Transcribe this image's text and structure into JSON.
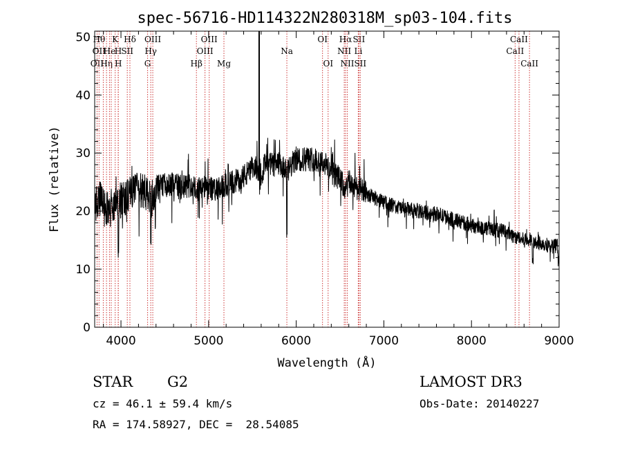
{
  "chart_data": {
    "type": "line",
    "title": "spec-56716-HD114322N280318M_sp03-104.fits",
    "xlabel": "Wavelength (Å)",
    "ylabel": "Flux (relative)",
    "xlim": [
      3700,
      9000
    ],
    "ylim": [
      0,
      51
    ],
    "xticks": [
      4000,
      5000,
      6000,
      7000,
      8000,
      9000
    ],
    "yticks": [
      0,
      10,
      20,
      30,
      40,
      50
    ],
    "series": [
      {
        "name": "spectrum",
        "anchors_x": [
          3700,
          3760,
          3800,
          3850,
          3900,
          3950,
          4000,
          4050,
          4100,
          4200,
          4300,
          4350,
          4400,
          4500,
          4600,
          4700,
          4800,
          4850,
          4900,
          5000,
          5100,
          5200,
          5300,
          5400,
          5500,
          5550,
          5600,
          5650,
          5700,
          5800,
          5850,
          5890,
          5950,
          6000,
          6100,
          6200,
          6300,
          6400,
          6500,
          6563,
          6600,
          6700,
          6800,
          7000,
          7200,
          7400,
          7600,
          7800,
          8000,
          8200,
          8400,
          8500,
          8600,
          8700,
          8800,
          8900,
          9000
        ],
        "anchors_y": [
          21,
          22,
          21.5,
          20,
          20.5,
          21,
          22,
          22.5,
          23,
          23.5,
          23,
          22,
          24,
          24.5,
          24.5,
          24,
          24.5,
          23.5,
          24,
          24,
          23.5,
          24.5,
          25,
          26,
          27,
          27.5,
          27,
          28,
          28,
          28,
          27.5,
          26.5,
          28,
          29,
          29,
          29,
          28.5,
          27,
          25.5,
          23.5,
          25,
          24,
          23,
          21.5,
          20.5,
          20,
          19.5,
          18.5,
          17.5,
          17,
          16.5,
          15.5,
          15,
          15,
          14.5,
          14,
          14
        ]
      }
    ],
    "spike": {
      "x": 5577,
      "y_top": 51
    },
    "lines": [
      {
        "x": 3727,
        "labels": [
          {
            "row": 2,
            "text": "OII"
          }
        ]
      },
      {
        "x": 3750,
        "labels": [
          {
            "row": 0,
            "text": "Hθ"
          },
          {
            "row": 1,
            "text": "OII"
          }
        ]
      },
      {
        "x": 3798,
        "labels": []
      },
      {
        "x": 3835,
        "labels": [
          {
            "row": 2,
            "text": "Hη"
          }
        ]
      },
      {
        "x": 3869,
        "labels": [
          {
            "row": 1,
            "text": "He"
          }
        ]
      },
      {
        "x": 3889,
        "labels": []
      },
      {
        "x": 3934,
        "labels": [
          {
            "row": 0,
            "text": "K"
          }
        ]
      },
      {
        "x": 3968,
        "labels": [
          {
            "row": 1,
            "text": "H"
          }
        ]
      },
      {
        "x": 3970,
        "labels": [
          {
            "row": 2,
            "text": "H"
          }
        ]
      },
      {
        "x": 4072,
        "labels": [
          {
            "row": 1,
            "text": "SII"
          }
        ]
      },
      {
        "x": 4102,
        "labels": [
          {
            "row": 0,
            "text": "Hδ"
          }
        ]
      },
      {
        "x": 4304,
        "labels": [
          {
            "row": 2,
            "text": "G"
          }
        ]
      },
      {
        "x": 4340,
        "labels": [
          {
            "row": 1,
            "text": "Hγ"
          }
        ]
      },
      {
        "x": 4363,
        "labels": [
          {
            "row": 0,
            "text": "OIII"
          }
        ]
      },
      {
        "x": 4861,
        "labels": [
          {
            "row": 2,
            "text": "Hβ"
          }
        ]
      },
      {
        "x": 4959,
        "labels": [
          {
            "row": 1,
            "text": "OIII"
          }
        ]
      },
      {
        "x": 5007,
        "labels": [
          {
            "row": 0,
            "text": "OIII"
          }
        ]
      },
      {
        "x": 5175,
        "labels": [
          {
            "row": 2,
            "text": "Mg"
          }
        ]
      },
      {
        "x": 5893,
        "labels": [
          {
            "row": 1,
            "text": "Na"
          }
        ]
      },
      {
        "x": 6300,
        "labels": [
          {
            "row": 0,
            "text": "OI"
          }
        ]
      },
      {
        "x": 6364,
        "labels": [
          {
            "row": 2,
            "text": "OI"
          }
        ]
      },
      {
        "x": 6548,
        "labels": [
          {
            "row": 1,
            "text": "NII"
          }
        ]
      },
      {
        "x": 6563,
        "labels": [
          {
            "row": 0,
            "text": "Hα"
          }
        ]
      },
      {
        "x": 6583,
        "labels": [
          {
            "row": 2,
            "text": "NII"
          }
        ]
      },
      {
        "x": 6708,
        "labels": [
          {
            "row": 1,
            "text": "Li"
          }
        ]
      },
      {
        "x": 6716,
        "labels": [
          {
            "row": 0,
            "text": "SII"
          }
        ]
      },
      {
        "x": 6731,
        "labels": [
          {
            "row": 2,
            "text": "SII"
          }
        ]
      },
      {
        "x": 8498,
        "labels": [
          {
            "row": 1,
            "text": "CaII"
          }
        ]
      },
      {
        "x": 8542,
        "labels": [
          {
            "row": 0,
            "text": "CaII"
          }
        ]
      },
      {
        "x": 8662,
        "labels": [
          {
            "row": 2,
            "text": "CaII"
          }
        ]
      }
    ],
    "grid": false,
    "legend": "none"
  },
  "info": {
    "class": "STAR",
    "subclass": "G2",
    "survey": "LAMOST DR3",
    "cz": "cz = 46.1 ± 59.4 km/s",
    "obsdate": "Obs-Date: 20140227",
    "radec": "RA = 174.58927, DEC =  28.54085"
  },
  "colors": {
    "line_marker": "#cc3333",
    "spectrum": "#000000"
  }
}
